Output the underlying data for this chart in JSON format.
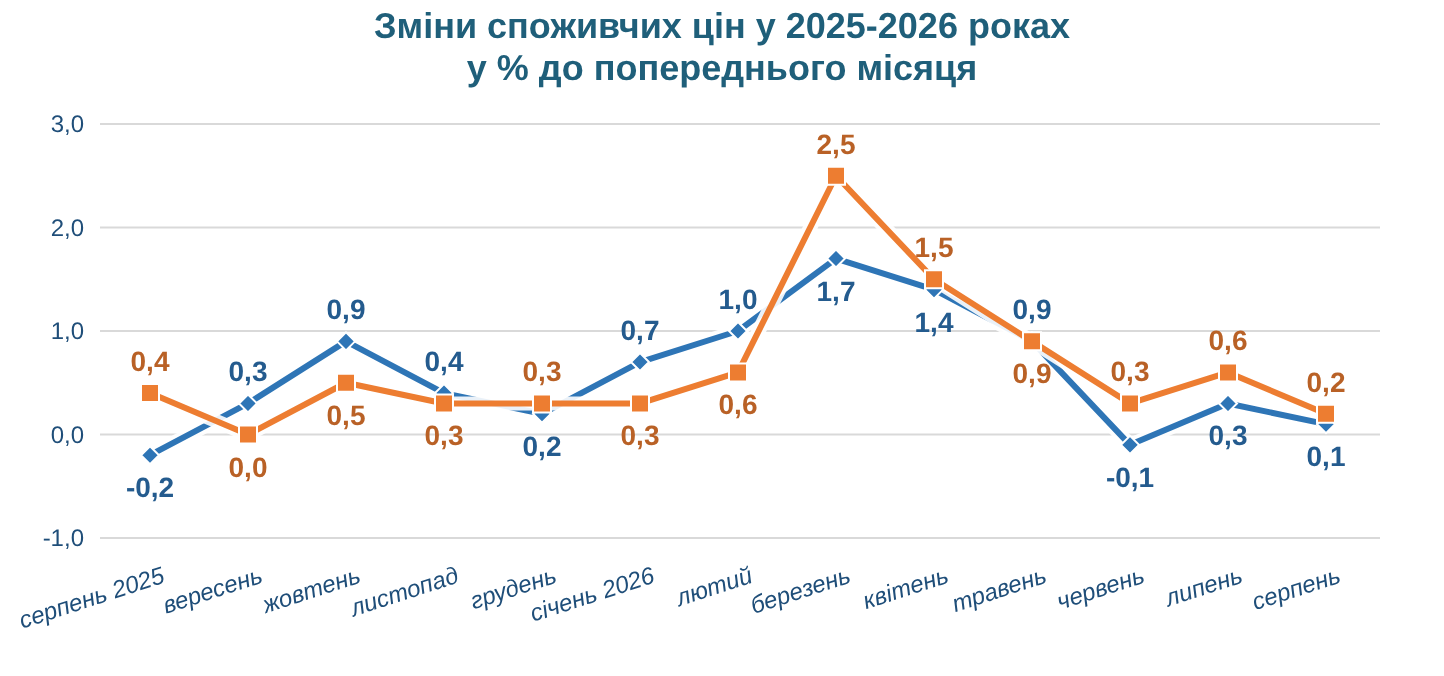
{
  "chart_data": {
    "type": "line",
    "title": "Зміни споживчих цін у 2025-2026 роках",
    "subtitle": "у % до попереднього місяця",
    "categories": [
      "серпень 2025",
      "вересень",
      "жовтень",
      "листопад",
      "грудень",
      "січень 2026",
      "лютий",
      "березень",
      "квітень",
      "травень",
      "червень",
      "липень",
      "серпень"
    ],
    "series": [
      {
        "color": "#2e75b6",
        "marker": "diamond",
        "values": [
          -0.2,
          0.3,
          0.9,
          0.4,
          0.2,
          0.7,
          1.0,
          1.7,
          1.4,
          0.9,
          -0.1,
          0.3,
          0.1
        ],
        "value_labels": [
          "-0,2",
          "0,3",
          "0,9",
          "0,4",
          "0,2",
          "0,7",
          "1,0",
          "1,7",
          "1,4",
          "0,9",
          "-0,1",
          "0,3",
          "0,1"
        ]
      },
      {
        "color": "#ed7d31",
        "marker": "square",
        "values": [
          0.4,
          0.0,
          0.5,
          0.3,
          0.3,
          0.3,
          0.6,
          2.5,
          1.5,
          0.9,
          0.3,
          0.6,
          0.2
        ],
        "value_labels": [
          "0,4",
          "0,0",
          "0,5",
          "0,3",
          "0,3",
          "0,3",
          "0,6",
          "2,5",
          "1,5",
          "0,9",
          "0,3",
          "0,6",
          "0,2"
        ]
      }
    ],
    "ylim": [
      -1,
      3
    ],
    "yticks": [
      {
        "value": -1,
        "label": "-1,0"
      },
      {
        "value": 0,
        "label": "0,0"
      },
      {
        "value": 1,
        "label": "1,0"
      },
      {
        "value": 2,
        "label": "2,0"
      },
      {
        "value": 3,
        "label": "3,0"
      }
    ],
    "grid": "y",
    "line_style": "solid"
  }
}
